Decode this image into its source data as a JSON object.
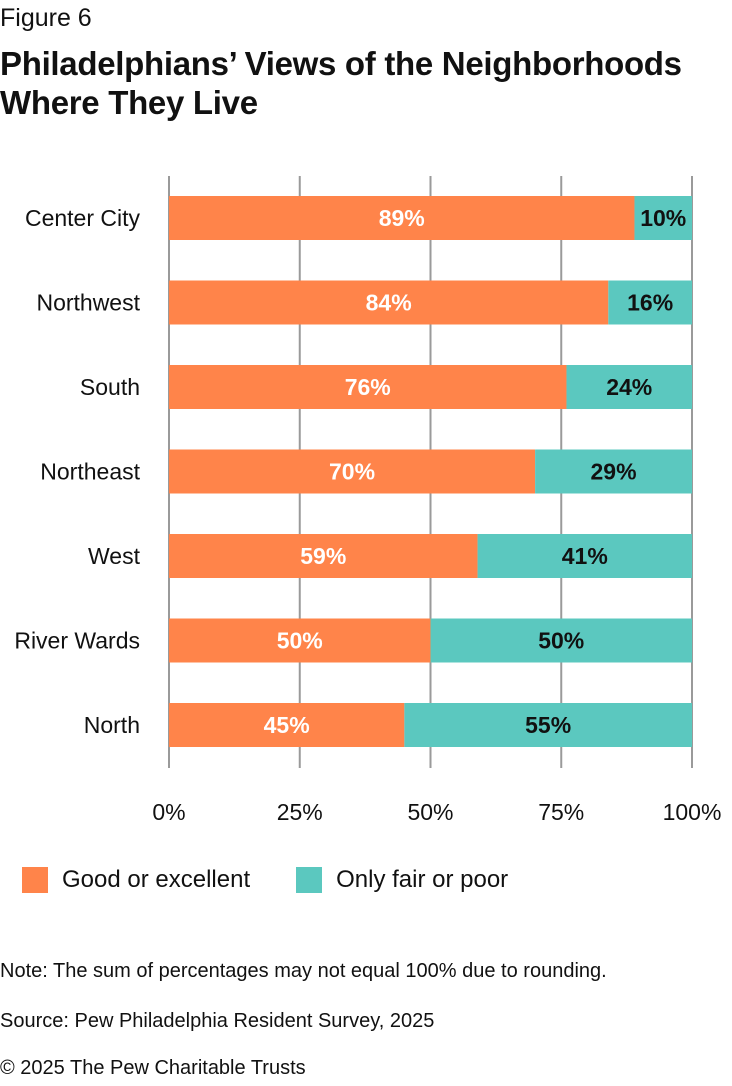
{
  "figure_label": "Figure 6",
  "title": "Philadelphians’ Views of the Neighborhoods Where They Live",
  "colors": {
    "good": "#FF844A",
    "fair": "#5BC8BF",
    "grid": "#9a9a9a"
  },
  "legend": {
    "good_label": "Good or excellent",
    "fair_label": "Only fair or poor"
  },
  "notes": {
    "note": "Note: The sum of percentages may not equal 100% due to rounding.",
    "source": "Source: Pew Philadelphia Resident Survey, 2025",
    "copyright": "© 2025 The Pew Charitable Trusts"
  },
  "chart_data": {
    "type": "bar",
    "orientation": "horizontal",
    "stacked": true,
    "categories": [
      "Center City",
      "Northwest",
      "South",
      "Northeast",
      "West",
      "River Wards",
      "North"
    ],
    "series": [
      {
        "name": "Good or excellent",
        "values": [
          89,
          84,
          76,
          70,
          59,
          50,
          45
        ],
        "labels": [
          "89%",
          "84%",
          "76%",
          "70%",
          "59%",
          "50%",
          "45%"
        ]
      },
      {
        "name": "Only fair or poor",
        "values": [
          10,
          16,
          24,
          29,
          41,
          50,
          55
        ],
        "labels": [
          "10%",
          "16%",
          "24%",
          "29%",
          "41%",
          "50%",
          "55%"
        ]
      }
    ],
    "xlim": [
      0,
      100
    ],
    "xticks": [
      0,
      25,
      50,
      75,
      100
    ],
    "xtick_labels": [
      "0%",
      "25%",
      "50%",
      "75%",
      "100%"
    ],
    "grid": true,
    "legend_position": "bottom"
  }
}
